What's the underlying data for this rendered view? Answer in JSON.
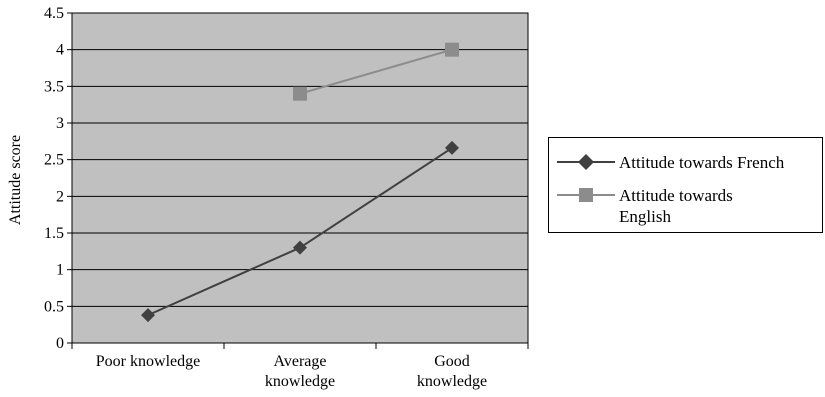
{
  "chart_data": {
    "type": "line",
    "categories": [
      "Poor knowledge",
      "Average knowledge",
      "Good knowledge"
    ],
    "category_lines": [
      [
        "Poor knowledge"
      ],
      [
        "Average",
        "knowledge"
      ],
      [
        "Good",
        "knowledge"
      ]
    ],
    "ylabel": "Attitude score",
    "ylim": [
      0,
      4.5
    ],
    "yticks": [
      "0",
      "0.5",
      "1",
      "1.5",
      "2",
      "2.5",
      "3",
      "3.5",
      "4",
      "4.5"
    ],
    "grid": true,
    "legend_position": "right",
    "series": [
      {
        "name": "Attitude towards French",
        "name_lines": [
          "Attitude towards French"
        ],
        "values": [
          0.38,
          1.3,
          2.66
        ],
        "color": "#404040",
        "marker": "diamond"
      },
      {
        "name": "Attitude towards English",
        "name_lines": [
          "Attitude towards",
          "English"
        ],
        "values": [
          null,
          3.4,
          4.0
        ],
        "color": "#8c8c8c",
        "marker": "square"
      }
    ],
    "plot_background": "#c0c0c0"
  }
}
